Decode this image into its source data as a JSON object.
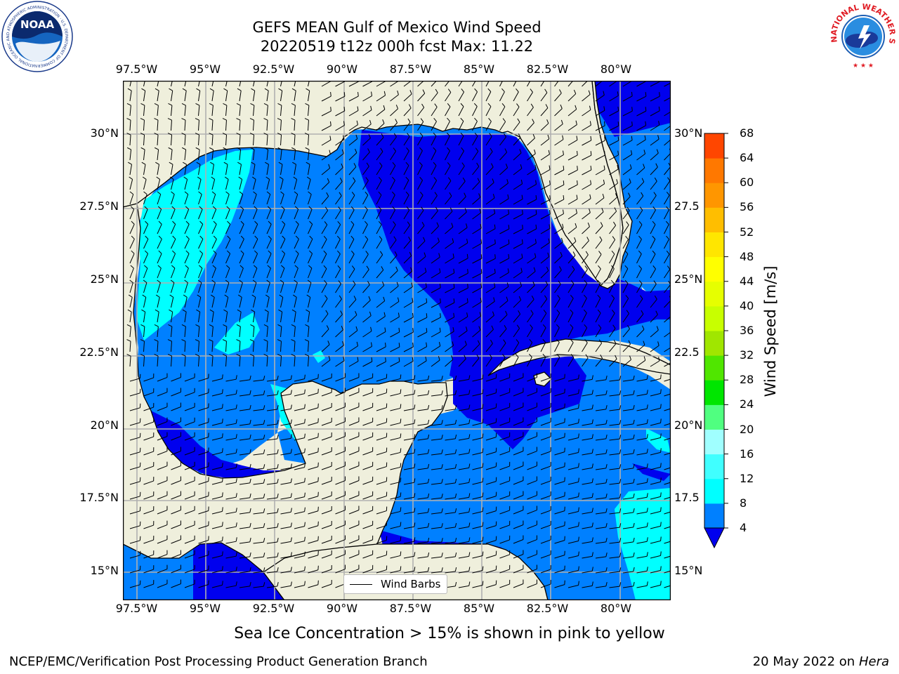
{
  "title_line1": "GEFS MEAN Gulf of Mexico Wind Speed",
  "title_line2": "20220519 t12z 000h fcst   Max: 11.22",
  "footer_note": "Sea Ice Concentration > 15% is shown in pink to yellow",
  "credit_left": "NCEP/EMC/Verification Post Processing Product Generation Branch",
  "credit_right_date": "20 May 2022 on",
  "credit_right_system": "Hera",
  "legend_label": "Wind Barbs",
  "noaa_logo": {
    "wordmark": "NOAA",
    "ring_text": "NATIONAL OCEANIC AND ATMOSPHERIC ADMINISTRATION · U.S. DEPARTMENT OF COMMERCE"
  },
  "nws_logo": {
    "ring_text": "NATIONAL WEATHER SERVICE"
  },
  "map": {
    "type": "filled-contour-map",
    "region": "Gulf of Mexico",
    "extent": {
      "lon": [
        -98,
        -78
      ],
      "lat": [
        14,
        31.8
      ]
    },
    "lon_ticks": [
      "97.5°W",
      "95°W",
      "92.5°W",
      "90°W",
      "87.5°W",
      "85°W",
      "82.5°W",
      "80°W"
    ],
    "lon_tick_values": [
      -97.5,
      -95,
      -92.5,
      -90,
      -87.5,
      -85,
      -82.5,
      -80
    ],
    "lat_ticks_left": [
      "30°N",
      "27.5°N",
      "25°N",
      "22.5°N",
      "20°N",
      "17.5°N",
      "15°N"
    ],
    "lat_ticks_right": [
      "30°N",
      "27.5",
      "25°N",
      "22.5",
      "20°N",
      "17.5",
      "15°N"
    ],
    "lat_tick_values": [
      30,
      27.5,
      25,
      22.5,
      20,
      17.5,
      15
    ],
    "grid": true,
    "colors": {
      "land": "#efefdc",
      "ocean_4_8": "#0080ff",
      "ocean_lt4": "#0000ee",
      "ocean_8_12": "#00ffff",
      "coast": "#000000",
      "grid": "#b0b0b0"
    }
  },
  "colorbar": {
    "title": "Wind Speed [m/s]",
    "levels": [
      4,
      8,
      12,
      16,
      20,
      24,
      28,
      32,
      36,
      40,
      44,
      48,
      52,
      56,
      60,
      64,
      68
    ],
    "labels": [
      "4",
      "8",
      "12",
      "16",
      "20",
      "24",
      "28",
      "32",
      "36",
      "40",
      "44",
      "48",
      "52",
      "56",
      "60",
      "64",
      "68"
    ],
    "colors": [
      "#0080ff",
      "#00ffff",
      "#40ffff",
      "#a0ffff",
      "#50ff80",
      "#00e600",
      "#50e600",
      "#a0e600",
      "#c8ff00",
      "#e6ff00",
      "#ffff00",
      "#ffe600",
      "#ffbe00",
      "#ff9600",
      "#ff7800",
      "#ff4600",
      "#ff0000"
    ],
    "under_color": "#0000ee",
    "extend": "min"
  }
}
